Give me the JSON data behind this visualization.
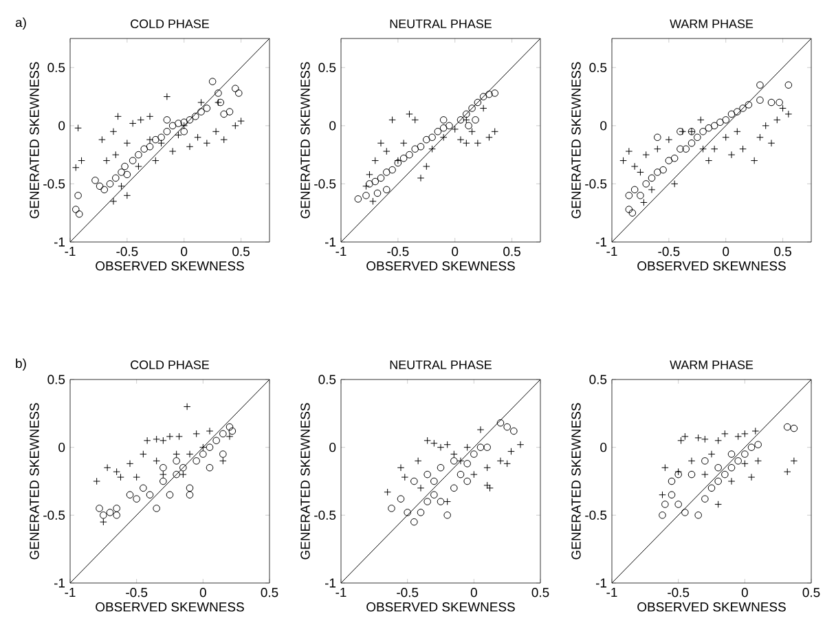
{
  "chart_data": [
    {
      "type": "scatter",
      "title": "COLD PHASE",
      "xlabel": "OBSERVED SKEWNESS",
      "ylabel": "GENERATED SKEWNESS",
      "annotations": [
        "a)"
      ],
      "xlim": [
        -1,
        0.75
      ],
      "ylim": [
        -1,
        0.75
      ],
      "xticks": [
        -1,
        -0.5,
        0,
        0.5
      ],
      "yticks": [
        -1,
        -0.5,
        0,
        0.5
      ],
      "series": [
        {
          "color": "#000000",
          "marker": "circle",
          "x": [
            -0.93,
            -0.95,
            -0.92,
            -0.78,
            -0.74,
            -0.7,
            -0.65,
            -0.6,
            -0.55,
            -0.52,
            -0.5,
            -0.45,
            -0.4,
            -0.35,
            -0.3,
            -0.25,
            -0.2,
            -0.15,
            -0.1,
            -0.05,
            0,
            0.05,
            0.1,
            0.15,
            0.2,
            0.25,
            0.3,
            0.32,
            0.4,
            0.45,
            0.48,
            0.35,
            -0.15,
            0
          ],
          "values": [
            -0.6,
            -0.72,
            -0.76,
            -0.47,
            -0.52,
            -0.55,
            -0.5,
            -0.45,
            -0.4,
            -0.35,
            -0.42,
            -0.3,
            -0.25,
            -0.2,
            -0.18,
            -0.12,
            -0.1,
            -0.05,
            0,
            0.02,
            0.03,
            0.05,
            0.08,
            0.12,
            0.15,
            0.38,
            0.28,
            0.2,
            0.12,
            0.32,
            0.28,
            0.1,
            0.05,
            -0.05
          ]
        },
        {
          "color": "#000000",
          "marker": "cross",
          "x": [
            -0.93,
            -0.9,
            -0.95,
            -0.72,
            -0.62,
            -0.58,
            -0.5,
            -0.45,
            -0.38,
            -0.3,
            -0.15,
            -0.25,
            -0.1,
            0.05,
            0.12,
            0.2,
            0.28,
            0.35,
            0.45,
            0.5,
            0.3,
            0.15,
            -0.5,
            -0.62,
            -0.55,
            -0.4,
            -0.2,
            0,
            -0.05,
            -0.3,
            -0.68,
            -0.6
          ],
          "values": [
            -0.02,
            -0.3,
            -0.36,
            -0.12,
            -0.05,
            0.08,
            -0.15,
            0.02,
            0.05,
            0.08,
            0.25,
            -0.3,
            -0.22,
            -0.18,
            -0.1,
            -0.15,
            -0.05,
            -0.12,
            0,
            0.04,
            0.2,
            0.2,
            -0.6,
            -0.65,
            -0.52,
            -0.35,
            -0.15,
            0,
            -0.08,
            -0.12,
            -0.3,
            -0.25
          ]
        },
        {
          "type": "line",
          "color": "#000000",
          "x": [
            -1,
            0.75
          ],
          "values": [
            -1,
            0.75
          ]
        }
      ]
    },
    {
      "type": "scatter",
      "title": "NEUTRAL PHASE",
      "xlabel": "OBSERVED SKEWNESS",
      "ylabel": "GENERATED SKEWNESS",
      "xlim": [
        -1,
        0.75
      ],
      "ylim": [
        -1,
        0.75
      ],
      "xticks": [
        -1,
        -0.5,
        0,
        0.5
      ],
      "yticks": [
        -1,
        -0.5,
        0,
        0.5
      ],
      "series": [
        {
          "color": "#000000",
          "marker": "circle",
          "x": [
            -0.85,
            -0.78,
            -0.75,
            -0.7,
            -0.65,
            -0.6,
            -0.55,
            -0.5,
            -0.45,
            -0.4,
            -0.35,
            -0.3,
            -0.25,
            -0.2,
            -0.15,
            -0.1,
            -0.05,
            0.05,
            0.1,
            0.15,
            0.2,
            0.25,
            0.3,
            0.35,
            0.18,
            0.12,
            -0.1,
            -0.6,
            -0.68
          ],
          "values": [
            -0.63,
            -0.6,
            -0.5,
            -0.48,
            -0.45,
            -0.4,
            -0.38,
            -0.32,
            -0.28,
            -0.25,
            -0.2,
            -0.18,
            -0.12,
            -0.1,
            -0.05,
            -0.02,
            0,
            0.05,
            0.1,
            0.15,
            0.2,
            0.25,
            0.27,
            0.28,
            0.05,
            0,
            0.05,
            -0.55,
            -0.58
          ]
        },
        {
          "color": "#000000",
          "marker": "cross",
          "x": [
            -0.78,
            -0.72,
            -0.75,
            -0.7,
            -0.65,
            -0.55,
            -0.4,
            -0.35,
            -0.45,
            -0.3,
            -0.25,
            -0.2,
            -0.1,
            0.05,
            0.1,
            0.2,
            0.3,
            0.35,
            0.15,
            0,
            -0.5,
            -0.6,
            0.25,
            0.1
          ],
          "values": [
            -0.52,
            -0.65,
            -0.42,
            -0.3,
            -0.15,
            0.05,
            0.1,
            0.05,
            -0.15,
            -0.45,
            -0.35,
            -0.2,
            -0.1,
            -0.12,
            -0.15,
            -0.15,
            -0.1,
            -0.05,
            -0.05,
            -0.03,
            -0.3,
            -0.22,
            0.15,
            0.05
          ]
        },
        {
          "type": "line",
          "color": "#000000",
          "x": [
            -1,
            0.75
          ],
          "values": [
            -1,
            0.75
          ]
        }
      ]
    },
    {
      "type": "scatter",
      "title": "WARM PHASE",
      "xlabel": "OBSERVED SKEWNESS",
      "ylabel": "GENERATED SKEWNESS",
      "xlim": [
        -1,
        0.75
      ],
      "ylim": [
        -1,
        0.75
      ],
      "xticks": [
        -1,
        -0.5,
        0,
        0.5
      ],
      "yticks": [
        -1,
        -0.5,
        0,
        0.5
      ],
      "series": [
        {
          "color": "#000000",
          "marker": "circle",
          "x": [
            -0.85,
            -0.82,
            -0.85,
            -0.8,
            -0.75,
            -0.7,
            -0.65,
            -0.6,
            -0.55,
            -0.5,
            -0.45,
            -0.4,
            -0.35,
            -0.3,
            -0.25,
            -0.2,
            -0.15,
            -0.1,
            -0.05,
            0,
            0.05,
            0.1,
            0.15,
            0.2,
            0.3,
            0.3,
            0.4,
            0.47,
            0.55,
            -0.6,
            -0.4,
            -0.3
          ],
          "values": [
            -0.72,
            -0.75,
            -0.6,
            -0.55,
            -0.6,
            -0.5,
            -0.45,
            -0.4,
            -0.38,
            -0.3,
            -0.28,
            -0.2,
            -0.2,
            -0.15,
            -0.1,
            -0.05,
            -0.02,
            0,
            0.03,
            0.05,
            0.1,
            0.12,
            0.15,
            0.18,
            0.35,
            0.22,
            0.2,
            0.2,
            0.35,
            -0.1,
            -0.05,
            -0.05
          ]
        },
        {
          "color": "#000000",
          "marker": "cross",
          "x": [
            -0.9,
            -0.85,
            -0.8,
            -0.75,
            -0.7,
            -0.6,
            -0.5,
            -0.45,
            -0.38,
            -0.3,
            -0.22,
            -0.2,
            -0.15,
            -0.1,
            0,
            0.05,
            0.1,
            0.15,
            0.25,
            0.3,
            0.35,
            0.4,
            0.5,
            0.55,
            0.45,
            -0.65,
            -0.72
          ],
          "values": [
            -0.3,
            -0.22,
            -0.35,
            -0.4,
            -0.25,
            -0.2,
            -0.12,
            -0.5,
            -0.05,
            -0.05,
            0.05,
            -0.2,
            -0.3,
            -0.2,
            -0.1,
            -0.25,
            -0.05,
            -0.2,
            -0.3,
            -0.1,
            0,
            -0.15,
            0.15,
            0.1,
            0.05,
            -0.55,
            -0.66
          ]
        },
        {
          "type": "line",
          "color": "#000000",
          "x": [
            -1,
            0.75
          ],
          "values": [
            -1,
            0.75
          ]
        }
      ]
    },
    {
      "type": "scatter",
      "title": "COLD PHASE",
      "xlabel": "OBSERVED SKEWNESS",
      "ylabel": "GENERATED SKEWNESS",
      "annotations": [
        "b)"
      ],
      "xlim": [
        -1,
        0.5
      ],
      "ylim": [
        -1,
        0.5
      ],
      "xticks": [
        -1,
        -0.5,
        0,
        0.5
      ],
      "yticks": [
        -1,
        -0.5,
        0,
        0.5
      ],
      "series": [
        {
          "color": "#000000",
          "marker": "circle",
          "x": [
            -0.78,
            -0.75,
            -0.7,
            -0.65,
            -0.65,
            -0.55,
            -0.5,
            -0.45,
            -0.4,
            -0.35,
            -0.3,
            -0.25,
            -0.2,
            -0.15,
            -0.1,
            -0.05,
            0,
            0.05,
            0.1,
            0.15,
            0.2,
            0.22,
            0.15,
            -0.1,
            -0.3,
            -0.2,
            0.05
          ],
          "values": [
            -0.45,
            -0.5,
            -0.48,
            -0.45,
            -0.5,
            -0.35,
            -0.38,
            -0.3,
            -0.35,
            -0.45,
            -0.25,
            -0.35,
            -0.2,
            -0.15,
            -0.3,
            -0.1,
            -0.05,
            0,
            0.05,
            0.1,
            0.15,
            0.12,
            -0.05,
            -0.35,
            -0.15,
            -0.1,
            -0.15
          ]
        },
        {
          "color": "#000000",
          "marker": "cross",
          "x": [
            -0.8,
            -0.72,
            -0.65,
            -0.62,
            -0.55,
            -0.5,
            -0.45,
            -0.42,
            -0.35,
            -0.3,
            -0.25,
            -0.18,
            -0.12,
            -0.05,
            0.05,
            0.2,
            0.15,
            -0.75,
            -0.35,
            -0.2,
            -0.1,
            0,
            -0.3,
            -0.15
          ],
          "values": [
            -0.25,
            -0.15,
            -0.18,
            -0.22,
            -0.12,
            -0.22,
            -0.05,
            0.05,
            0.06,
            0.05,
            0.08,
            0.08,
            0.3,
            0.1,
            0.12,
            0.08,
            -0.1,
            -0.55,
            -0.1,
            -0.05,
            -0.05,
            0,
            -0.2,
            -0.2
          ]
        },
        {
          "type": "line",
          "color": "#000000",
          "x": [
            -1,
            0.5
          ],
          "values": [
            -1,
            0.5
          ]
        }
      ]
    },
    {
      "type": "scatter",
      "title": "NEUTRAL PHASE",
      "xlabel": "OBSERVED SKEWNESS",
      "ylabel": "GENERATED SKEWNESS",
      "xlim": [
        -1,
        0.5
      ],
      "ylim": [
        -1,
        0.5
      ],
      "xticks": [
        -1,
        -0.5,
        0,
        0.5
      ],
      "yticks": [
        -1,
        -0.5,
        0,
        0.5
      ],
      "series": [
        {
          "color": "#000000",
          "marker": "circle",
          "x": [
            -0.62,
            -0.55,
            -0.5,
            -0.45,
            -0.4,
            -0.35,
            -0.3,
            -0.25,
            -0.2,
            -0.15,
            -0.1,
            -0.05,
            0,
            0.05,
            0.1,
            0.2,
            0.25,
            0.3,
            -0.45,
            -0.35,
            -0.25,
            -0.15,
            -0.05,
            -0.3
          ],
          "values": [
            -0.45,
            -0.38,
            -0.48,
            -0.55,
            -0.48,
            -0.4,
            -0.35,
            -0.4,
            -0.5,
            -0.3,
            -0.2,
            -0.12,
            -0.05,
            0,
            0,
            0.18,
            0.15,
            0.12,
            -0.25,
            -0.2,
            -0.15,
            -0.1,
            -0.25,
            -0.25
          ]
        },
        {
          "color": "#000000",
          "marker": "cross",
          "x": [
            -0.65,
            -0.55,
            -0.52,
            -0.42,
            -0.35,
            -0.3,
            -0.25,
            -0.2,
            -0.15,
            -0.05,
            0.05,
            0.1,
            0.12,
            0.1,
            0.2,
            0.25,
            0.28,
            0.35,
            -0.2,
            -0.1,
            -0.4,
            0
          ],
          "values": [
            -0.33,
            -0.15,
            -0.22,
            -0.1,
            0.05,
            0.03,
            0,
            0.02,
            -0.05,
            0,
            0.13,
            -0.15,
            -0.3,
            -0.28,
            -0.1,
            -0.12,
            -0.03,
            0.02,
            -0.4,
            -0.1,
            -0.3,
            -0.2
          ]
        },
        {
          "type": "line",
          "color": "#000000",
          "x": [
            -1,
            0.5
          ],
          "values": [
            -1,
            0.5
          ]
        }
      ]
    },
    {
      "type": "scatter",
      "title": "WARM PHASE",
      "xlabel": "OBSERVED SKEWNESS",
      "ylabel": "GENERATED SKEWNESS",
      "xlim": [
        -1,
        0.5
      ],
      "ylim": [
        -1,
        0.5
      ],
      "xticks": [
        -1,
        -0.5,
        0,
        0.5
      ],
      "yticks": [
        -1,
        -0.5,
        0,
        0.5
      ],
      "series": [
        {
          "color": "#000000",
          "marker": "circle",
          "x": [
            -0.62,
            -0.6,
            -0.55,
            -0.5,
            -0.45,
            -0.35,
            -0.3,
            -0.25,
            -0.2,
            -0.15,
            -0.1,
            -0.05,
            0,
            0.05,
            0.1,
            0.32,
            0.37,
            -0.5,
            -0.4,
            -0.3,
            -0.2,
            -0.1,
            -0.55
          ],
          "values": [
            -0.5,
            -0.42,
            -0.35,
            -0.42,
            -0.48,
            -0.5,
            -0.38,
            -0.3,
            -0.25,
            -0.2,
            -0.15,
            -0.1,
            -0.05,
            0,
            0.02,
            0.15,
            0.14,
            -0.2,
            -0.2,
            -0.1,
            -0.15,
            -0.05,
            -0.25
          ]
        },
        {
          "color": "#000000",
          "marker": "cross",
          "x": [
            -0.62,
            -0.6,
            -0.5,
            -0.48,
            -0.45,
            -0.35,
            -0.3,
            -0.2,
            -0.15,
            -0.05,
            0,
            0.08,
            0.1,
            0.05,
            -0.1,
            -0.2,
            -0.3,
            0.32,
            0.37,
            0,
            -0.4,
            -0.25
          ],
          "values": [
            -0.35,
            -0.15,
            -0.18,
            0.05,
            0.08,
            0.07,
            0.06,
            0.05,
            0.1,
            0.08,
            0.1,
            0.12,
            -0.1,
            -0.22,
            -0.25,
            -0.42,
            -0.2,
            -0.18,
            -0.1,
            -0.12,
            -0.1,
            -0.05
          ]
        },
        {
          "type": "line",
          "color": "#000000",
          "x": [
            -1,
            0.5
          ],
          "values": [
            -1,
            0.5
          ]
        }
      ]
    }
  ]
}
